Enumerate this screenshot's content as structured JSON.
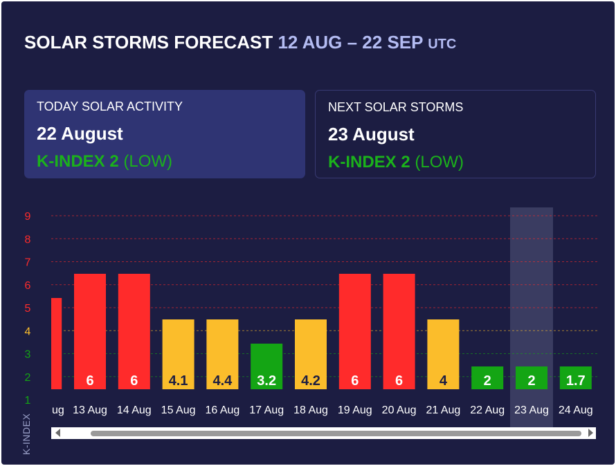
{
  "header": {
    "title_main": "SOLAR STORMS FORECAST",
    "title_range": "12 AUG – 22 SEP",
    "title_tz": "UTC"
  },
  "today": {
    "label": "TODAY SOLAR ACTIVITY",
    "date": "22 August",
    "kindex_label": "K-INDEX 2",
    "level": "(LOW)"
  },
  "next": {
    "label": "NEXT SOLAR STORMS",
    "date": "23 August",
    "kindex_label": "K-INDEX 2",
    "level": "(LOW)"
  },
  "colors": {
    "background": "#1c1d42",
    "high": "#ff2b2b",
    "medium": "#fbbd2b",
    "low": "#14a514",
    "highlight": "#3a3c61"
  },
  "chart_data": {
    "type": "bar",
    "ylabel": "K-INDEX",
    "ylim": [
      1,
      9
    ],
    "yticks": [
      "1",
      "2",
      "3",
      "4",
      "5",
      "6",
      "7",
      "8",
      "9"
    ],
    "partial_first": {
      "label": "ug",
      "value": 5
    },
    "categories": [
      "13 Aug",
      "14 Aug",
      "15 Aug",
      "16 Aug",
      "17 Aug",
      "18 Aug",
      "19 Aug",
      "20 Aug",
      "21 Aug",
      "22 Aug",
      "23 Aug",
      "24 Aug"
    ],
    "values": [
      6,
      6,
      4.1,
      4.4,
      3.2,
      4.2,
      6,
      6,
      4,
      2,
      2,
      1.7
    ],
    "value_labels": [
      "6",
      "6",
      "4.1",
      "4.4",
      "3.2",
      "4.2",
      "6",
      "6",
      "4",
      "2",
      "2",
      "1.7"
    ],
    "highlighted_category": "23 Aug",
    "grid": true
  }
}
